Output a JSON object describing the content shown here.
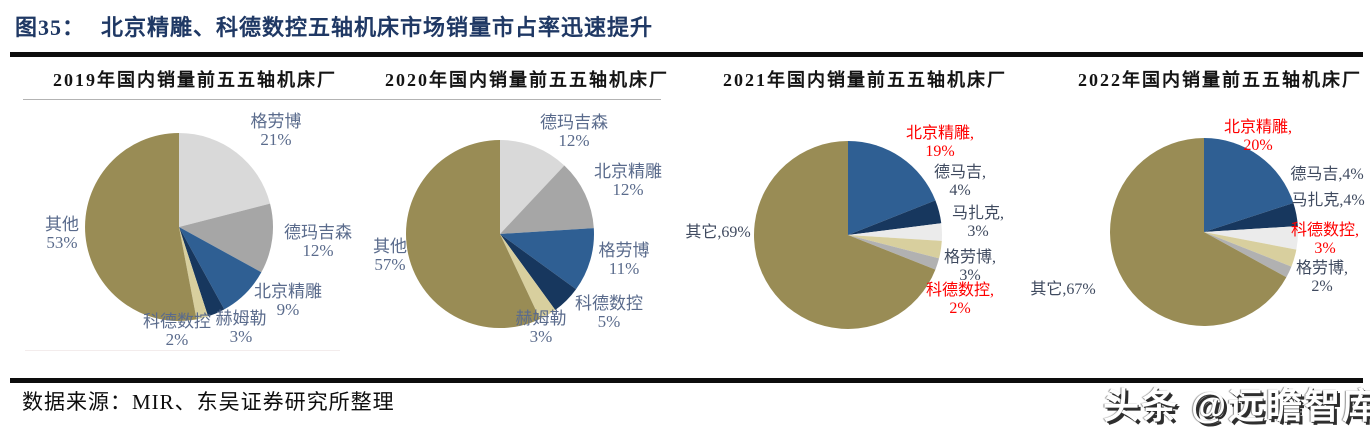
{
  "figure": {
    "title_prefix": "图35：",
    "title": "北京精雕、科德数控五轴机床市场销量市占率迅速提升",
    "title_color": "#1F3864"
  },
  "footer": {
    "source": "数据来源：MIR、东吴证券研究所整理"
  },
  "watermark": {
    "text": "头条 @远瞻智库"
  },
  "palette": {
    "olive": "#998C55",
    "steel_blue": "#2F5F93",
    "dark_navy": "#17375E",
    "light_gray": "#D9D9D9",
    "mid_gray": "#A6A6A6",
    "off_white": "#EBEBEB",
    "pale_khaki": "#D8CF9E",
    "small_gray": "#B1B1B1",
    "label_slate": "#5A6B8C",
    "label_dark": "#3F4A5F",
    "highlight_red": "#FF0000"
  },
  "chart_data": [
    {
      "type": "pie",
      "title": "2019年国内销量前五五轴机床厂",
      "slices": [
        {
          "label": "格劳博",
          "value": 21,
          "display": [
            "格劳博",
            "21%"
          ],
          "color": "#D9D9D9",
          "label_color": "#5A6B8C"
        },
        {
          "label": "德玛吉森",
          "value": 12,
          "display": [
            "德玛吉森",
            "12%"
          ],
          "color": "#A6A6A6",
          "label_color": "#5A6B8C"
        },
        {
          "label": "北京精雕",
          "value": 9,
          "display": [
            "北京精雕",
            "9%"
          ],
          "color": "#2F5F93",
          "label_color": "#5A6B8C"
        },
        {
          "label": "赫姆勒",
          "value": 3,
          "display": [
            "赫姆勒",
            "3%"
          ],
          "color": "#17375E",
          "label_color": "#5A6B8C"
        },
        {
          "label": "科德数控",
          "value": 2,
          "display": [
            "科德数控",
            "2%"
          ],
          "color": "#D8CF9E",
          "label_color": "#5A6B8C"
        },
        {
          "label": "其他",
          "value": 53,
          "display": [
            "其他",
            "53%"
          ],
          "color": "#998C55",
          "label_color": "#5A6B8C"
        }
      ]
    },
    {
      "type": "pie",
      "title": "2020年国内销量前五五轴机床厂",
      "slices": [
        {
          "label": "德玛吉森",
          "value": 12,
          "display": [
            "德玛吉森",
            "12%"
          ],
          "color": "#D9D9D9",
          "label_color": "#5A6B8C"
        },
        {
          "label": "北京精雕",
          "value": 12,
          "display": [
            "北京精雕",
            "12%"
          ],
          "color": "#A6A6A6",
          "label_color": "#5A6B8C"
        },
        {
          "label": "格劳博",
          "value": 11,
          "display": [
            "格劳博",
            "11%"
          ],
          "color": "#2F5F93",
          "label_color": "#5A6B8C"
        },
        {
          "label": "科德数控",
          "value": 5,
          "display": [
            "科德数控",
            "5%"
          ],
          "color": "#17375E",
          "label_color": "#5A6B8C"
        },
        {
          "label": "赫姆勒",
          "value": 3,
          "display": [
            "赫姆勒",
            "3%"
          ],
          "color": "#D8CF9E",
          "label_color": "#5A6B8C"
        },
        {
          "label": "其他",
          "value": 57,
          "display": [
            "其他",
            "57%"
          ],
          "color": "#998C55",
          "label_color": "#5A6B8C"
        }
      ]
    },
    {
      "type": "pie",
      "title": "2021年国内销量前五五轴机床厂",
      "slices": [
        {
          "label": "北京精雕",
          "value": 19,
          "display": [
            "北京精雕,",
            "19%"
          ],
          "color": "#2F5F93",
          "label_color": "#FF0000"
        },
        {
          "label": "德马吉",
          "value": 4,
          "display": [
            "德马吉,",
            "4%"
          ],
          "color": "#17375E",
          "label_color": "#3F4A5F"
        },
        {
          "label": "马扎克",
          "value": 3,
          "display": [
            "马扎克,",
            "3%"
          ],
          "color": "#EBEBEB",
          "label_color": "#3F4A5F"
        },
        {
          "label": "格劳博",
          "value": 3,
          "display": [
            "格劳博,",
            "3%"
          ],
          "color": "#D8CF9E",
          "label_color": "#3F4A5F"
        },
        {
          "label": "科德数控",
          "value": 2,
          "display": [
            "科德数控,",
            "2%"
          ],
          "color": "#B1B1B1",
          "label_color": "#FF0000"
        },
        {
          "label": "其它",
          "value": 69,
          "display": [
            "其它,69%"
          ],
          "color": "#998C55",
          "label_color": "#3F4A5F"
        }
      ]
    },
    {
      "type": "pie",
      "title": "2022年国内销量前五五轴机床厂",
      "slices": [
        {
          "label": "北京精雕",
          "value": 20,
          "display": [
            "北京精雕,",
            "20%"
          ],
          "color": "#2F5F93",
          "label_color": "#FF0000"
        },
        {
          "label": "德马吉",
          "value": 4,
          "display": [
            "德马吉,4%"
          ],
          "color": "#17375E",
          "label_color": "#3F4A5F"
        },
        {
          "label": "马扎克",
          "value": 4,
          "display": [
            "马扎克,4%"
          ],
          "color": "#EBEBEB",
          "label_color": "#3F4A5F"
        },
        {
          "label": "科德数控",
          "value": 3,
          "display": [
            "科德数控,",
            "3%"
          ],
          "color": "#D8CF9E",
          "label_color": "#FF0000"
        },
        {
          "label": "格劳博",
          "value": 2,
          "display": [
            "格劳博,",
            "2%"
          ],
          "color": "#B1B1B1",
          "label_color": "#3F4A5F"
        },
        {
          "label": "其它",
          "value": 67,
          "display": [
            "其它,67%"
          ],
          "color": "#998C55",
          "label_color": "#3F4A5F"
        }
      ]
    }
  ]
}
